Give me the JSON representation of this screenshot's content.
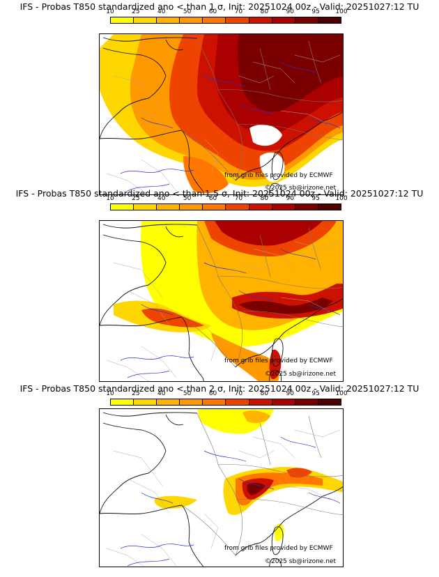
{
  "legend": {
    "ticks": [
      "10",
      "25",
      "40",
      "50",
      "60",
      "70",
      "80",
      "90",
      "95",
      "100"
    ],
    "colors": [
      "#ffff00",
      "#ffd700",
      "#ffb300",
      "#ff9900",
      "#ff7700",
      "#ee4400",
      "#cc1100",
      "#aa0000",
      "#7a0000",
      "#4d0000"
    ]
  },
  "panels": [
    {
      "title": "IFS - Probas T850  standardized ano < than 1 σ, Init: 20251024 00z - Valid: 20251027:12 TU",
      "credit_line1": "from grib files provided by ECMWF",
      "credit_line2": "©2025 sb@irizone.net"
    },
    {
      "title": "IFS - Probas T850  standardized ano < than 1.5 σ, Init: 20251024 00z - Valid: 20251027:12 TU",
      "credit_line1": "from grib files provided by ECMWF",
      "credit_line2": "©2025 sb@irizone.net"
    },
    {
      "title": "IFS - Probas T850  standardized ano < than 2 σ, Init: 20251024 00z - Valid: 20251027:12 TU",
      "credit_line1": "from grib files provided by ECMWF",
      "credit_line2": "©2025 sb@irizone.net"
    }
  ]
}
